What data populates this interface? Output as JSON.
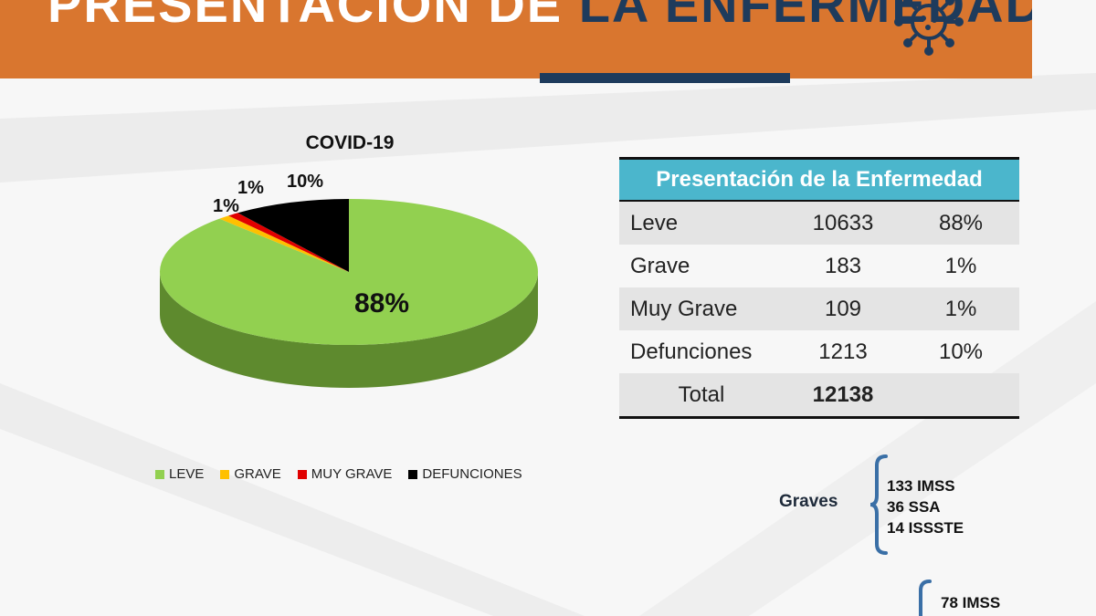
{
  "header": {
    "title_part1": "PRESENTACIÓN DE ",
    "title_part2": "LA ENFERMEDAD",
    "virus_icon": "virus-icon"
  },
  "colors": {
    "banner": "#d9762f",
    "navy": "#1e3b5c",
    "table_header": "#4bb6cc",
    "leve": "#92d050",
    "grave": "#ffc000",
    "muy_grave": "#e00000",
    "defunciones": "#000000"
  },
  "chart_data": {
    "type": "pie",
    "title": "COVID-19",
    "style": "3d",
    "legend_position": "bottom",
    "categories": [
      "LEVE",
      "GRAVE",
      "MUY GRAVE",
      "DEFUNCIONES"
    ],
    "values": [
      88,
      1,
      1,
      10
    ],
    "data_labels": [
      "88%",
      "1%",
      "1%",
      "10%"
    ]
  },
  "table": {
    "title": "Presentación de la Enfermedad",
    "rows": [
      {
        "label": "Leve",
        "count": "10633",
        "pct": "88%"
      },
      {
        "label": "Grave",
        "count": "183",
        "pct": "1%"
      },
      {
        "label": "Muy Grave",
        "count": "109",
        "pct": "1%"
      },
      {
        "label": "Defunciones",
        "count": "1213",
        "pct": "10%"
      }
    ],
    "total_label": "Total",
    "total_value": "12138"
  },
  "graves": {
    "label": "Graves",
    "lines": [
      "133 IMSS",
      "36 SSA",
      "14 ISSSTE"
    ]
  },
  "muy_graves": {
    "lines": [
      "78 IMSS"
    ]
  }
}
